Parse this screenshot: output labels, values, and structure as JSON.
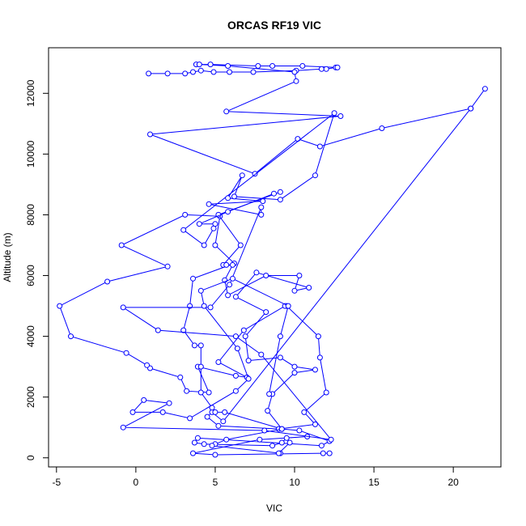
{
  "chart_data": {
    "type": "line",
    "title": "ORCAS RF19 VIC",
    "xlabel": "VIC",
    "ylabel": "Altitude (m)",
    "xlim": [
      -5.5,
      23
    ],
    "ylim": [
      -300,
      13500
    ],
    "x_ticks": [
      -5,
      0,
      5,
      10,
      15,
      20
    ],
    "y_ticks": [
      0,
      2000,
      4000,
      6000,
      8000,
      10000,
      12000
    ],
    "x_tick_labels": [
      "-5",
      "0",
      "5",
      "10",
      "15",
      "20"
    ],
    "y_tick_labels": [
      "0",
      "2000",
      "4000",
      "6000",
      "8000",
      "10000",
      "12000"
    ],
    "grid": false,
    "legend": "none",
    "color": "#0000ff",
    "series": [
      {
        "points": [
          [
            22.0,
            12150
          ],
          [
            21.1,
            11500
          ],
          [
            5.5,
            1200
          ],
          [
            4.8,
            1500
          ],
          [
            4.5,
            1350
          ],
          [
            5.2,
            1050
          ],
          [
            9.0,
            950
          ],
          [
            11.3,
            1100
          ],
          [
            10.6,
            1500
          ],
          [
            12.0,
            2150
          ],
          [
            11.6,
            3300
          ],
          [
            11.5,
            4000
          ],
          [
            9.5,
            5000
          ],
          [
            9.4,
            5000
          ],
          [
            6.8,
            4200
          ],
          [
            5.2,
            3150
          ],
          [
            7.0,
            2650
          ],
          [
            6.3,
            2700
          ],
          [
            3.9,
            3000
          ],
          [
            4.6,
            2150
          ],
          [
            3.2,
            2200
          ],
          [
            2.8,
            2650
          ],
          [
            0.9,
            2950
          ],
          [
            0.7,
            3050
          ],
          [
            -0.6,
            3450
          ],
          [
            -4.1,
            4000
          ],
          [
            -4.8,
            5000
          ],
          [
            -1.8,
            5800
          ],
          [
            2.0,
            6300
          ],
          [
            -0.9,
            7000
          ],
          [
            3.1,
            8000
          ],
          [
            5.3,
            7950
          ],
          [
            5.0,
            7000
          ],
          [
            6.2,
            6400
          ],
          [
            3.6,
            5900
          ],
          [
            3.4,
            5000
          ],
          [
            3.0,
            4200
          ],
          [
            3.7,
            3700
          ],
          [
            4.1,
            3700
          ],
          [
            4.1,
            3000
          ],
          [
            4.1,
            2150
          ],
          [
            4.8,
            1650
          ],
          [
            5.0,
            1500
          ],
          [
            5.6,
            1500
          ],
          [
            9.2,
            950
          ],
          [
            10.3,
            900
          ],
          [
            12.2,
            550
          ],
          [
            11.7,
            400
          ],
          [
            3.9,
            650
          ],
          [
            3.7,
            500
          ],
          [
            4.3,
            450
          ],
          [
            8.6,
            400
          ],
          [
            9.2,
            500
          ],
          [
            9.5,
            650
          ],
          [
            10.8,
            700
          ],
          [
            7.8,
            600
          ],
          [
            3.6,
            150
          ],
          [
            5.0,
            100
          ],
          [
            11.8,
            150
          ],
          [
            12.2,
            150
          ]
        ]
      },
      {
        "points": [
          [
            0.8,
            12650
          ],
          [
            2.0,
            12650
          ],
          [
            3.1,
            12650
          ],
          [
            3.6,
            12700
          ],
          [
            4.1,
            12750
          ],
          [
            4.9,
            12700
          ],
          [
            5.9,
            12700
          ],
          [
            7.4,
            12700
          ],
          [
            10.1,
            12750
          ],
          [
            11.7,
            12800
          ],
          [
            12.0,
            12800
          ],
          [
            12.6,
            12850
          ],
          [
            12.7,
            12850
          ],
          [
            10.5,
            12900
          ],
          [
            8.6,
            12900
          ],
          [
            7.7,
            12900
          ],
          [
            4.7,
            12950
          ],
          [
            3.8,
            12950
          ],
          [
            4.0,
            12950
          ],
          [
            5.8,
            12900
          ],
          [
            10.0,
            12700
          ],
          [
            10.1,
            12400
          ],
          [
            5.7,
            11400
          ],
          [
            12.9,
            11250
          ],
          [
            0.9,
            10650
          ],
          [
            7.5,
            9350
          ],
          [
            10.2,
            10500
          ],
          [
            11.6,
            10250
          ],
          [
            15.5,
            10850
          ],
          [
            21.1,
            11500
          ]
        ]
      },
      {
        "points": [
          [
            9.1,
            8750
          ],
          [
            5.2,
            8000
          ],
          [
            6.6,
            7000
          ],
          [
            5.5,
            6350
          ],
          [
            5.7,
            6350
          ],
          [
            6.1,
            6350
          ],
          [
            5.6,
            5850
          ],
          [
            5.8,
            5350
          ],
          [
            8.2,
            6000
          ],
          [
            10.3,
            6000
          ],
          [
            10.0,
            5500
          ],
          [
            10.9,
            5600
          ],
          [
            7.6,
            6100
          ],
          [
            6.3,
            5300
          ],
          [
            8.2,
            4800
          ],
          [
            6.9,
            4000
          ],
          [
            7.1,
            3200
          ],
          [
            9.1,
            3300
          ],
          [
            10.0,
            3000
          ],
          [
            11.3,
            2900
          ],
          [
            10.0,
            2800
          ],
          [
            8.6,
            2100
          ],
          [
            8.3,
            1550
          ],
          [
            9.2,
            950
          ],
          [
            5.7,
            600
          ],
          [
            5.0,
            450
          ],
          [
            4.8,
            400
          ],
          [
            9.1,
            150
          ],
          [
            9.0,
            150
          ],
          [
            9.7,
            500
          ]
        ]
      },
      {
        "points": [
          [
            8.4,
            2100
          ],
          [
            9.1,
            4000
          ],
          [
            9.6,
            5000
          ],
          [
            6.1,
            5900
          ],
          [
            4.1,
            5500
          ],
          [
            4.3,
            5000
          ],
          [
            6.4,
            3600
          ],
          [
            7.1,
            2600
          ],
          [
            6.3,
            2200
          ],
          [
            3.4,
            1300
          ],
          [
            1.7,
            1500
          ],
          [
            -0.2,
            1500
          ],
          [
            0.5,
            1900
          ],
          [
            2.1,
            1800
          ],
          [
            -0.8,
            1000
          ],
          [
            8.1,
            900
          ],
          [
            12.3,
            600
          ],
          [
            7.9,
            3400
          ],
          [
            6.3,
            4000
          ],
          [
            1.4,
            4200
          ],
          [
            -0.8,
            4950
          ],
          [
            4.7,
            4950
          ],
          [
            5.9,
            5700
          ],
          [
            7.9,
            8250
          ],
          [
            7.9,
            8000
          ],
          [
            4.6,
            8350
          ],
          [
            8.0,
            8450
          ],
          [
            5.8,
            8550
          ],
          [
            6.7,
            9300
          ],
          [
            6.2,
            8600
          ],
          [
            9.1,
            8500
          ],
          [
            11.3,
            9300
          ],
          [
            12.5,
            11350
          ],
          [
            3.0,
            7500
          ],
          [
            4.3,
            7000
          ],
          [
            4.9,
            7550
          ],
          [
            5.0,
            7700
          ],
          [
            4.0,
            7700
          ],
          [
            5.8,
            8100
          ],
          [
            8.7,
            8700
          ]
        ]
      }
    ]
  }
}
